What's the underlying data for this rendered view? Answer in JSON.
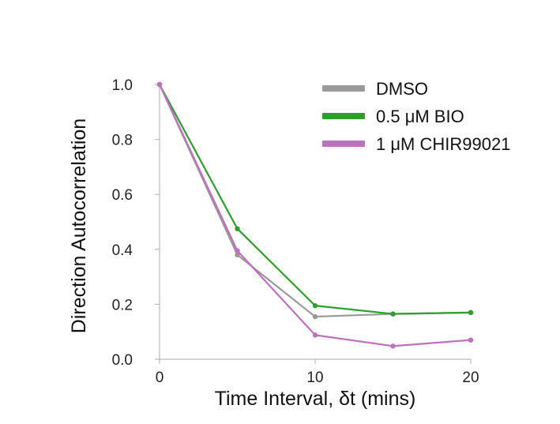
{
  "chart_data": {
    "type": "line",
    "xlabel": "Time Interval, δt (mins)",
    "ylabel": "Direction Autocorrelation",
    "xlim": [
      0,
      20
    ],
    "ylim": [
      0,
      1.0
    ],
    "x_ticks": [
      "0",
      "10",
      "20"
    ],
    "y_ticks": [
      "0.0",
      "0.2",
      "0.4",
      "0.6",
      "0.8",
      "1.0"
    ],
    "x_tick_values": [
      0,
      10,
      20
    ],
    "y_tick_values": [
      0.0,
      0.2,
      0.4,
      0.6,
      0.8,
      1.0
    ],
    "grid": false,
    "legend_position": "top-right",
    "x": [
      0,
      5,
      10,
      15,
      20
    ],
    "series": [
      {
        "name": "DMSO",
        "color": "#999999",
        "values": [
          1.0,
          0.38,
          0.155,
          0.165,
          0.17
        ]
      },
      {
        "name": "0.5 μM BIO",
        "color": "#2e9e2e",
        "values": [
          1.0,
          0.475,
          0.195,
          0.165,
          0.17
        ]
      },
      {
        "name": "1 μM CHIR99021",
        "color": "#bf6fbf",
        "values": [
          1.0,
          0.395,
          0.088,
          0.048,
          0.07
        ]
      }
    ]
  }
}
